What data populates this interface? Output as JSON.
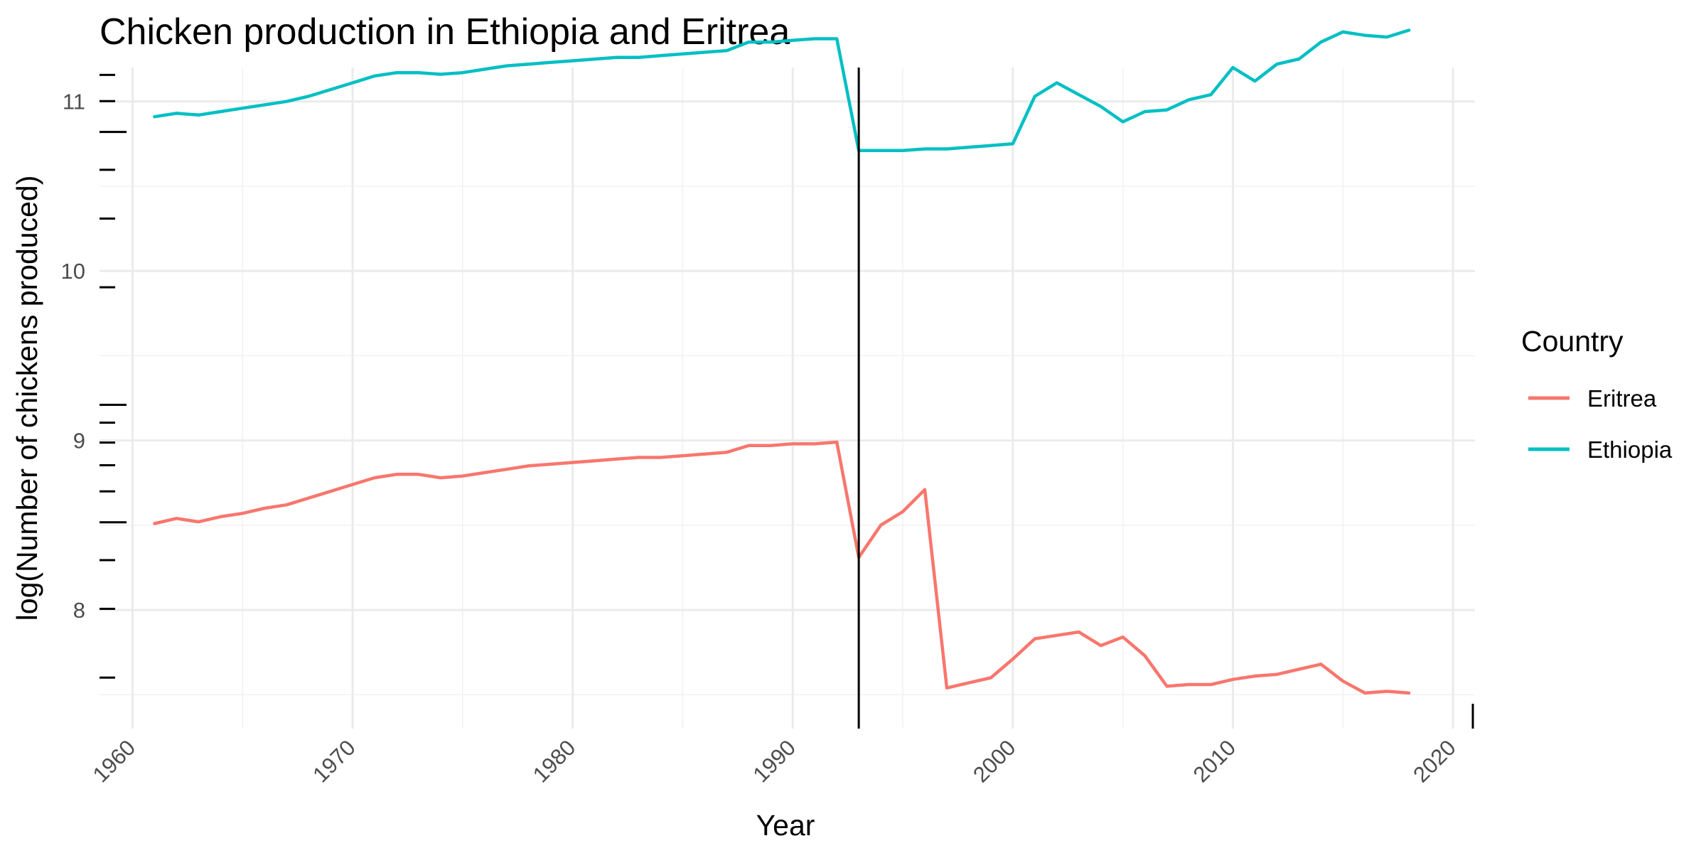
{
  "chart_data": {
    "type": "line",
    "title": "Chicken production in Ethiopia and Eritrea",
    "xlabel": "Year",
    "ylabel": "log(Number of chickens produced)",
    "xlim": [
      1958.5,
      2021
    ],
    "ylim": [
      7.3,
      11.2
    ],
    "x_ticks": [
      1960,
      1970,
      1980,
      1990,
      2000,
      2010,
      2020
    ],
    "y_ticks": [
      8,
      9,
      10,
      11
    ],
    "grid": true,
    "vertical_line_x": 1993,
    "legend": {
      "title": "Country",
      "position": "right"
    },
    "x": [
      1961,
      1962,
      1963,
      1964,
      1965,
      1966,
      1967,
      1968,
      1969,
      1970,
      1971,
      1972,
      1973,
      1974,
      1975,
      1976,
      1977,
      1978,
      1979,
      1980,
      1981,
      1982,
      1983,
      1984,
      1985,
      1986,
      1987,
      1988,
      1989,
      1990,
      1991,
      1992,
      1993,
      1994,
      1995,
      1996,
      1997,
      1998,
      1999,
      2000,
      2001,
      2002,
      2003,
      2004,
      2005,
      2006,
      2007,
      2008,
      2009,
      2010,
      2011,
      2012,
      2013,
      2014,
      2015,
      2016,
      2017,
      2018
    ],
    "series": [
      {
        "name": "Eritrea",
        "color": "#F8766D",
        "values": [
          8.51,
          8.54,
          8.52,
          8.55,
          8.57,
          8.6,
          8.62,
          8.66,
          8.7,
          8.74,
          8.78,
          8.8,
          8.8,
          8.78,
          8.79,
          8.81,
          8.83,
          8.85,
          8.86,
          8.87,
          8.88,
          8.89,
          8.9,
          8.9,
          8.91,
          8.92,
          8.93,
          8.97,
          8.97,
          8.98,
          8.98,
          8.99,
          8.31,
          8.5,
          8.58,
          8.71,
          7.54,
          7.57,
          7.6,
          7.71,
          7.83,
          7.85,
          7.87,
          7.79,
          7.84,
          7.73,
          7.55,
          7.56,
          7.56,
          7.59,
          7.61,
          7.62,
          7.65,
          7.68,
          7.58,
          7.51,
          7.52,
          7.51
        ]
      },
      {
        "name": "Ethiopia",
        "color": "#00BFC4",
        "values": [
          10.91,
          10.93,
          10.92,
          10.94,
          10.96,
          10.98,
          11.0,
          11.03,
          11.07,
          11.11,
          11.15,
          11.17,
          11.17,
          11.16,
          11.17,
          11.19,
          11.21,
          11.22,
          11.23,
          11.24,
          11.25,
          11.26,
          11.26,
          11.27,
          11.28,
          11.29,
          11.3,
          11.35,
          11.35,
          11.36,
          11.37,
          11.37,
          10.71,
          10.71,
          10.71,
          10.72,
          10.72,
          10.73,
          10.74,
          10.75,
          11.03,
          11.11,
          11.04,
          10.97,
          10.88,
          10.94,
          10.95,
          11.01,
          11.04,
          11.2,
          11.12,
          11.22,
          11.25,
          11.35,
          11.41,
          11.39,
          11.38,
          11.42
        ]
      }
    ]
  }
}
